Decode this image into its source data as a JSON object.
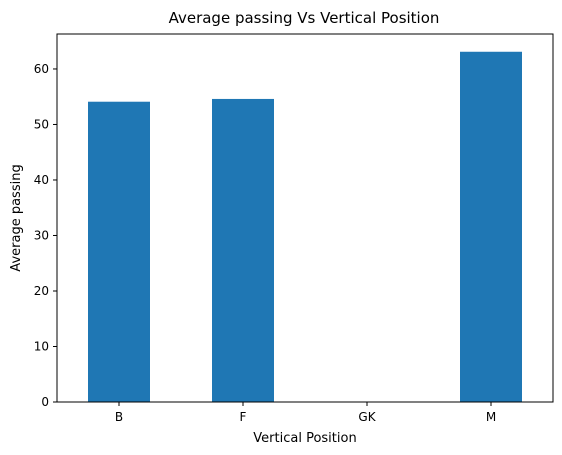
{
  "chart_data": {
    "type": "bar",
    "title": "Average passing Vs Vertical Position",
    "xlabel": "Vertical Position",
    "ylabel": "Average passing",
    "categories": [
      "B",
      "F",
      "GK",
      "M"
    ],
    "values": [
      54.1,
      54.6,
      0,
      63.1
    ],
    "ylim": [
      0,
      66.3
    ],
    "yticks": [
      0,
      10,
      20,
      30,
      40,
      50,
      60
    ],
    "bar_color": "#1f77b4",
    "grid": false,
    "legend": "none"
  }
}
